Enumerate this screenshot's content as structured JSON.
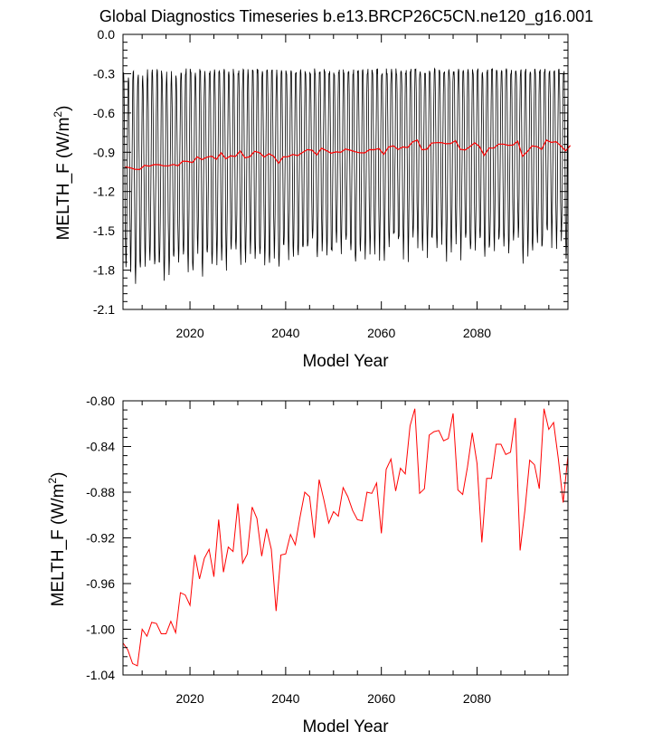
{
  "title": "Global Diagnostics Timeseries b.e13.BRCP26C5CN.ne120_g16.001",
  "chart_data": [
    {
      "type": "line",
      "name": "monthly-panel",
      "xlabel": "Model Year",
      "ylabel_main": "MELTH_F (W/m",
      "ylabel_sup": "2",
      "ylabel_close": ")",
      "xlim": [
        2006,
        2099
      ],
      "ylim": [
        -2.1,
        0.0
      ],
      "xticks": [
        2020,
        2040,
        2060,
        2080
      ],
      "xtick_labels": [
        "2020",
        "2040",
        "2060",
        "2080"
      ],
      "yticks": [
        0.0,
        -0.3,
        -0.6,
        -0.9,
        -1.2,
        -1.5,
        -1.8,
        -2.1
      ],
      "ytick_labels": [
        "0.0",
        "-0.3",
        "-0.6",
        "-0.9",
        "-1.2",
        "-1.5",
        "-1.8",
        "-2.1"
      ],
      "series": [
        {
          "name": "monthly",
          "color": "#000000",
          "description": "monthly values oscillating seasonally between ~-1.85 and ~-0.35 W/m2"
        },
        {
          "name": "annual-mean",
          "color": "#ff0000",
          "source": "annual-panel"
        }
      ]
    },
    {
      "type": "line",
      "name": "annual-panel",
      "xlabel": "Model Year",
      "ylabel_main": "MELTH_F (W/m",
      "ylabel_sup": "2",
      "ylabel_close": ")",
      "xlim": [
        2006,
        2099
      ],
      "ylim": [
        -1.04,
        -0.8
      ],
      "xticks": [
        2020,
        2040,
        2060,
        2080
      ],
      "xtick_labels": [
        "2020",
        "2040",
        "2060",
        "2080"
      ],
      "yticks": [
        -0.8,
        -0.84,
        -0.88,
        -0.92,
        -0.96,
        -1.0,
        -1.04
      ],
      "ytick_labels": [
        "-0.80",
        "-0.84",
        "-0.88",
        "-0.92",
        "-0.96",
        "-1.00",
        "-1.04"
      ],
      "series": [
        {
          "name": "annual-mean",
          "color": "#ff0000",
          "x": [
            2006,
            2007,
            2008,
            2009,
            2010,
            2011,
            2012,
            2013,
            2014,
            2015,
            2016,
            2017,
            2018,
            2019,
            2020,
            2021,
            2022,
            2023,
            2024,
            2025,
            2026,
            2027,
            2028,
            2029,
            2030,
            2031,
            2032,
            2033,
            2034,
            2035,
            2036,
            2037,
            2038,
            2039,
            2040,
            2041,
            2042,
            2043,
            2044,
            2045,
            2046,
            2047,
            2048,
            2049,
            2050,
            2051,
            2052,
            2053,
            2054,
            2055,
            2056,
            2057,
            2058,
            2059,
            2060,
            2061,
            2062,
            2063,
            2064,
            2065,
            2066,
            2067,
            2068,
            2069,
            2070,
            2071,
            2072,
            2073,
            2074,
            2075,
            2076,
            2077,
            2078,
            2079,
            2080,
            2081,
            2082,
            2083,
            2084,
            2085,
            2086,
            2087,
            2088,
            2089,
            2090,
            2091,
            2092,
            2093,
            2094,
            2095,
            2096,
            2097,
            2098,
            2099
          ],
          "values": [
            -1.012,
            -1.018,
            -1.03,
            -1.032,
            -1.0,
            -1.006,
            -0.994,
            -0.995,
            -1.004,
            -1.004,
            -0.993,
            -1.003,
            -0.968,
            -0.97,
            -0.979,
            -0.935,
            -0.956,
            -0.938,
            -0.93,
            -0.954,
            -0.904,
            -0.95,
            -0.928,
            -0.932,
            -0.89,
            -0.942,
            -0.934,
            -0.893,
            -0.903,
            -0.936,
            -0.912,
            -0.93,
            -0.984,
            -0.935,
            -0.934,
            -0.917,
            -0.926,
            -0.902,
            -0.88,
            -0.884,
            -0.92,
            -0.869,
            -0.887,
            -0.907,
            -0.897,
            -0.901,
            -0.876,
            -0.884,
            -0.896,
            -0.904,
            -0.905,
            -0.88,
            -0.881,
            -0.872,
            -0.916,
            -0.86,
            -0.851,
            -0.879,
            -0.859,
            -0.864,
            -0.822,
            -0.807,
            -0.881,
            -0.877,
            -0.83,
            -0.827,
            -0.826,
            -0.835,
            -0.833,
            -0.811,
            -0.878,
            -0.882,
            -0.858,
            -0.828,
            -0.855,
            -0.924,
            -0.868,
            -0.868,
            -0.838,
            -0.838,
            -0.847,
            -0.845,
            -0.815,
            -0.931,
            -0.896,
            -0.852,
            -0.856,
            -0.877,
            -0.807,
            -0.825,
            -0.819,
            -0.851,
            -0.889,
            -0.848
          ]
        }
      ]
    }
  ]
}
